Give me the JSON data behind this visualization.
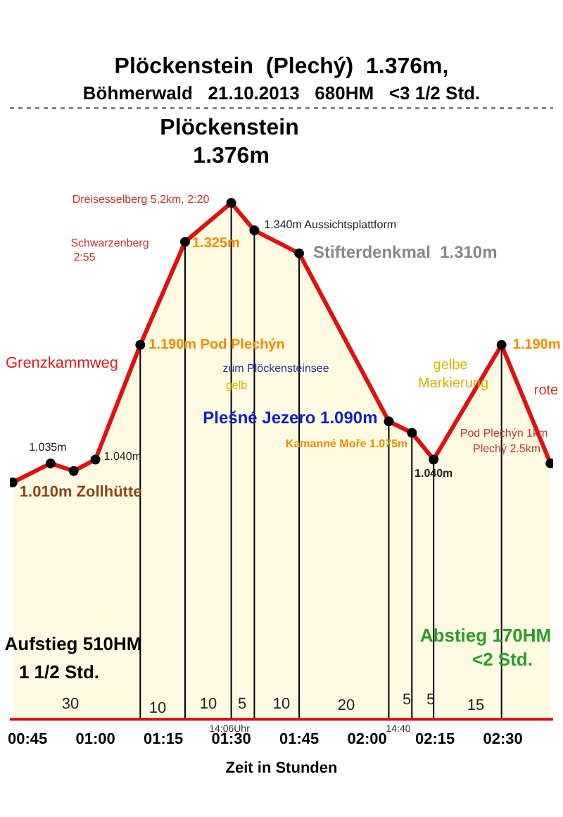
{
  "chart_data": {
    "type": "area",
    "title": "Plöckenstein  (Plechý)  1.376m,",
    "subtitle": "Böhmerwald   21.10.2013   680HM   <3 1/2 Std.",
    "xlabel": "Zeit in Stunden",
    "x": [
      0.695,
      0.835,
      0.92,
      1.0,
      1.165,
      1.33,
      1.5,
      1.585,
      1.75,
      2.08,
      2.165,
      2.245,
      2.495,
      2.675
    ],
    "series": [
      {
        "color": "#e01010",
        "values": [
          1.01,
          1.035,
          1.025,
          1.04,
          1.19,
          1.325,
          1.376,
          1.34,
          1.31,
          1.09,
          1.075,
          1.04,
          1.19,
          1.035
        ],
        "value_labels": [
          "1.010m Zollhütte",
          "1.035m",
          null,
          "1.040m",
          "1.190m Pod Plechýn",
          "1.325m",
          "1.376m",
          "1.340m Aussichtsplattform",
          "Stifterdenkmal  1.310m",
          "Plešné Jezero 1.090m",
          "Kamanné Moře 1.075m",
          "1.040m",
          "1.190m",
          null
        ]
      }
    ],
    "xlim": [
      0.685,
      2.685
    ],
    "xticks": [
      {
        "value": 0.75,
        "label": "00:45"
      },
      {
        "value": 1.0,
        "label": "01:00"
      },
      {
        "value": 1.25,
        "label": "01:15"
      },
      {
        "value": 1.5,
        "label": "01:30"
      },
      {
        "value": 1.75,
        "label": "01:45"
      },
      {
        "value": 2.0,
        "label": "02:00"
      },
      {
        "value": 2.25,
        "label": "02:15"
      },
      {
        "value": 2.5,
        "label": "02:30"
      }
    ],
    "ylim": [
      0.7,
      1.5
    ],
    "tick_labels": "x",
    "marker": "circle",
    "legend": false,
    "ref_lines": [
      {
        "axis": "x",
        "value": 1.165,
        "color": "#000000"
      },
      {
        "axis": "x",
        "value": 1.33,
        "color": "#000000"
      },
      {
        "axis": "x",
        "value": 1.5,
        "color": "#000000"
      },
      {
        "axis": "x",
        "value": 1.585,
        "color": "#000000"
      },
      {
        "axis": "x",
        "value": 1.75,
        "color": "#000000"
      },
      {
        "axis": "x",
        "value": 2.08,
        "color": "#000000"
      },
      {
        "axis": "x",
        "value": 2.165,
        "color": "#000000"
      },
      {
        "axis": "x",
        "value": 2.245,
        "color": "#000000"
      },
      {
        "axis": "x",
        "value": 2.495,
        "color": "#000000"
      }
    ],
    "annotations": [
      "Plöckenstein",
      "Dreisesselberg 5,2km, 2:20",
      "Schwarzenberg",
      "2:55",
      "Grenzkammweg",
      "zum Plöckensteinsee",
      "gelb",
      "gelbe",
      "Markierung",
      "Pod Plechýn 1km",
      "Plechý 2.5km",
      "rote",
      "Aufstieg 510HM",
      "1 1/2 Std.",
      "Abstieg 170HM",
      "<2 Std.",
      "30",
      "10",
      "10",
      "5",
      "10",
      "20",
      "5",
      "5",
      "15",
      "14:06Uhr",
      "14:40"
    ]
  }
}
